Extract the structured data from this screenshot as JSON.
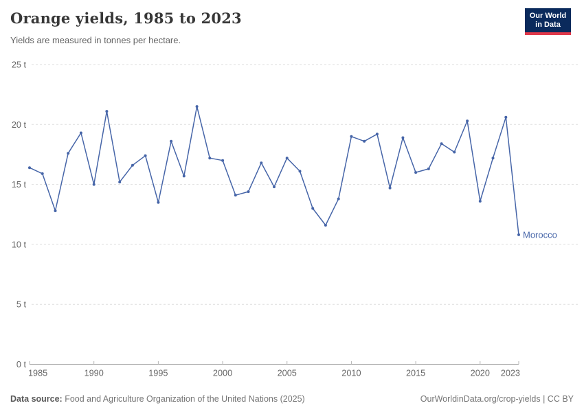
{
  "header": {
    "title": "Orange yields, 1985 to 2023",
    "subtitle": "Yields are measured in tonnes per hectare.",
    "logo": {
      "line1": "Our World",
      "line2": "in Data"
    }
  },
  "footer": {
    "source_label": "Data source:",
    "source_text": " Food and Agriculture Organization of the United Nations (2025)",
    "attribution": "OurWorldinData.org/crop-yields | CC BY"
  },
  "chart_data": {
    "type": "line",
    "title": "Orange yields, 1985 to 2023",
    "subtitle": "Yields are measured in tonnes per hectare.",
    "xlabel": "",
    "ylabel": "tonnes per hectare",
    "unit_suffix": " t",
    "xlim": [
      1985,
      2023
    ],
    "ylim": [
      0,
      25
    ],
    "grid": "dashed-horizontal",
    "legend_position": "end-of-line-label",
    "x_ticks": [
      1985,
      1990,
      1995,
      2000,
      2005,
      2010,
      2015,
      2020,
      2023
    ],
    "y_ticks": [
      0,
      5,
      10,
      15,
      20,
      25
    ],
    "series": [
      {
        "name": "Morocco",
        "color": "#4665a8",
        "x": [
          1985,
          1986,
          1987,
          1988,
          1989,
          1990,
          1991,
          1992,
          1993,
          1994,
          1995,
          1996,
          1997,
          1998,
          1999,
          2000,
          2001,
          2002,
          2003,
          2004,
          2005,
          2006,
          2007,
          2008,
          2009,
          2010,
          2011,
          2012,
          2013,
          2014,
          2015,
          2016,
          2017,
          2018,
          2019,
          2020,
          2021,
          2022,
          2023
        ],
        "values": [
          16.4,
          15.9,
          12.8,
          17.6,
          19.3,
          15.0,
          21.1,
          15.2,
          16.6,
          17.4,
          13.5,
          18.6,
          15.7,
          21.5,
          17.2,
          17.0,
          14.1,
          14.4,
          16.8,
          14.8,
          17.2,
          16.1,
          13.0,
          11.6,
          13.8,
          19.0,
          18.6,
          19.2,
          14.7,
          18.9,
          16.0,
          16.3,
          18.4,
          17.7,
          20.3,
          13.6,
          17.2,
          20.6,
          10.8
        ]
      }
    ]
  }
}
